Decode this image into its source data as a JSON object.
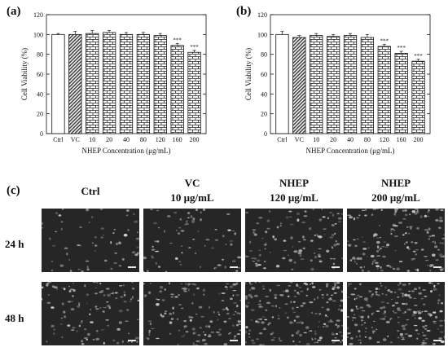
{
  "panels": {
    "a": "(a)",
    "b": "(b)",
    "c": "(c)"
  },
  "chart_data": [
    {
      "type": "bar",
      "panel": "(a)",
      "categories": [
        "Ctrl",
        "VC",
        "10",
        "20",
        "40",
        "80",
        "120",
        "160",
        "200"
      ],
      "values": [
        100,
        100,
        101,
        102,
        100,
        100,
        99,
        89,
        82
      ],
      "errors": [
        1,
        3,
        3,
        2,
        2,
        2,
        2,
        2,
        2
      ],
      "annotations": [
        "",
        "",
        "",
        "",
        "",
        "",
        "",
        "***",
        "***"
      ],
      "xlabel": "NHEP Concentration (μg/mL)",
      "ylabel": "Cell Viability (%)",
      "ylim": [
        0,
        120
      ],
      "yticks": [
        0,
        20,
        40,
        60,
        80,
        100,
        120
      ]
    },
    {
      "type": "bar",
      "panel": "(b)",
      "categories": [
        "Ctrl",
        "VC",
        "10",
        "20",
        "40",
        "80",
        "120",
        "160",
        "200"
      ],
      "values": [
        100,
        97,
        99,
        98,
        99,
        97,
        88,
        81,
        73
      ],
      "errors": [
        3,
        2,
        2,
        2,
        2,
        3,
        2,
        2,
        2
      ],
      "annotations": [
        "",
        "",
        "",
        "",
        "",
        "",
        "***",
        "***",
        "***"
      ],
      "xlabel": "NHEP Concentration (μg/mL)",
      "ylabel": "Cell Viability (%)",
      "ylim": [
        0,
        120
      ],
      "yticks": [
        0,
        20,
        40,
        60,
        80,
        100,
        120
      ]
    }
  ],
  "micrographs": {
    "columns": [
      {
        "line1": "Ctrl",
        "line2": ""
      },
      {
        "line1": "VC",
        "line2": "10 μg/mL"
      },
      {
        "line1": "NHEP",
        "line2": "120 μg/mL"
      },
      {
        "line1": "NHEP",
        "line2": "200 μg/mL"
      }
    ],
    "rows": [
      "24 h",
      "48 h"
    ]
  }
}
